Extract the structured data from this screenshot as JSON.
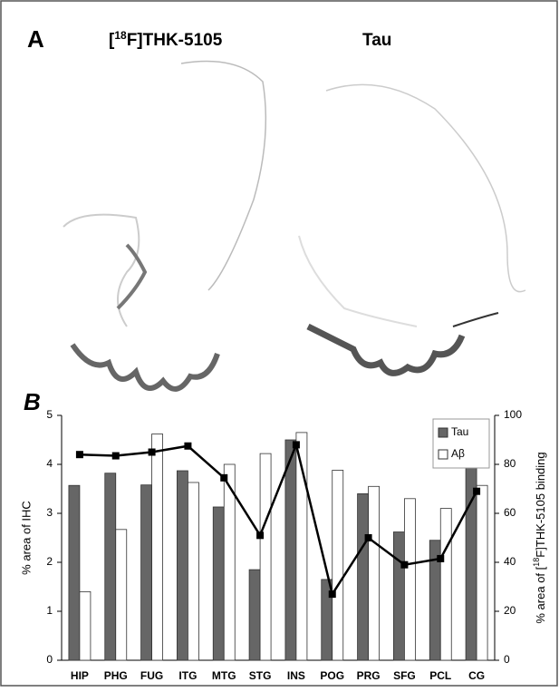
{
  "panel_a": {
    "label": "A",
    "titles": [
      [
        "[",
        "18",
        "F]THK-5105"
      ],
      [
        "Tau"
      ]
    ]
  },
  "chart_data": {
    "type": "bar",
    "label": "B",
    "categories": [
      "HIP",
      "PHG",
      "FUG",
      "ITG",
      "MTG",
      "STG",
      "INS",
      "POG",
      "PRG",
      "SFG",
      "PCL",
      "CG"
    ],
    "series": [
      {
        "name": "Tau",
        "color": "#666666",
        "values": [
          3.57,
          3.82,
          3.58,
          3.87,
          3.13,
          1.85,
          4.5,
          1.65,
          3.4,
          2.62,
          2.45,
          4.55
        ]
      },
      {
        "name": "Aβ",
        "color": "#ffffff",
        "values": [
          1.4,
          2.67,
          4.62,
          3.63,
          4.0,
          4.22,
          4.65,
          3.88,
          3.55,
          3.3,
          3.1,
          3.57
        ]
      },
      {
        "type": "line",
        "axis": "y2",
        "color": "#000000",
        "values": [
          84,
          83.5,
          85,
          87.5,
          74.5,
          51,
          88,
          27,
          50,
          39,
          41.5,
          69
        ]
      }
    ],
    "y_label": "% area of IHC",
    "y2_label": [
      "% area of [",
      "18",
      "F]THK-5105 binding"
    ],
    "ylim": [
      0,
      5
    ],
    "yticks": [
      0,
      1,
      2,
      3,
      4,
      5
    ],
    "y2lim": [
      0,
      100
    ],
    "y2ticks": [
      0,
      20,
      40,
      60,
      80,
      100
    ],
    "legend": "upper right"
  }
}
